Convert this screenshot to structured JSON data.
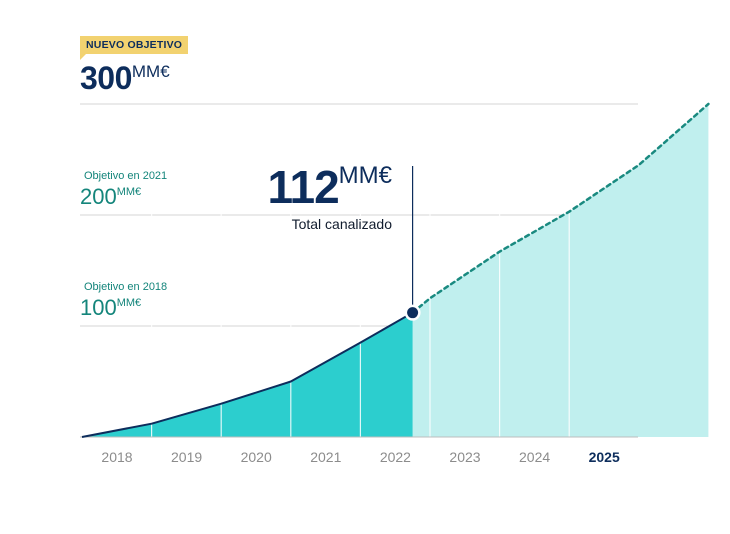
{
  "badge": {
    "label": "NUEVO OBJETIVO"
  },
  "target": {
    "value": "300",
    "unit": "MM€"
  },
  "objective_2021": {
    "label": "Objetivo en 2021",
    "value": "200",
    "unit": "MM€"
  },
  "objective_2018": {
    "label": "Objetivo en 2018",
    "value": "100",
    "unit": "MM€"
  },
  "current": {
    "value": "112",
    "unit": "MM€",
    "caption": "Total canalizado"
  },
  "colors": {
    "navy": "#0d2d5c",
    "teal_actual": "#2ccece",
    "teal_projected": "#c0efee",
    "dashed_line": "#1a8a80",
    "badge": "#f2d270",
    "grid": "#d6d6d6",
    "tick": "#8c8c8c"
  },
  "chart_data": {
    "type": "area",
    "categories": [
      "2018",
      "2019",
      "2020",
      "2021",
      "2022",
      "2023",
      "2024",
      "2025"
    ],
    "highlight_category": "2025",
    "ylim": [
      0,
      300
    ],
    "gridlines": [
      100,
      200,
      300
    ],
    "series": [
      {
        "style": "actual",
        "points": [
          [
            0,
            0
          ],
          [
            1,
            12
          ],
          [
            2,
            30
          ],
          [
            3,
            50
          ],
          [
            4,
            85
          ],
          [
            4.75,
            112
          ]
        ]
      },
      {
        "style": "projected",
        "points": [
          [
            4.75,
            112
          ],
          [
            5,
            125
          ],
          [
            6,
            167
          ],
          [
            7,
            203
          ],
          [
            8,
            245
          ],
          [
            9,
            300
          ]
        ]
      }
    ],
    "marker": {
      "x": 4.75,
      "y": 112
    }
  }
}
